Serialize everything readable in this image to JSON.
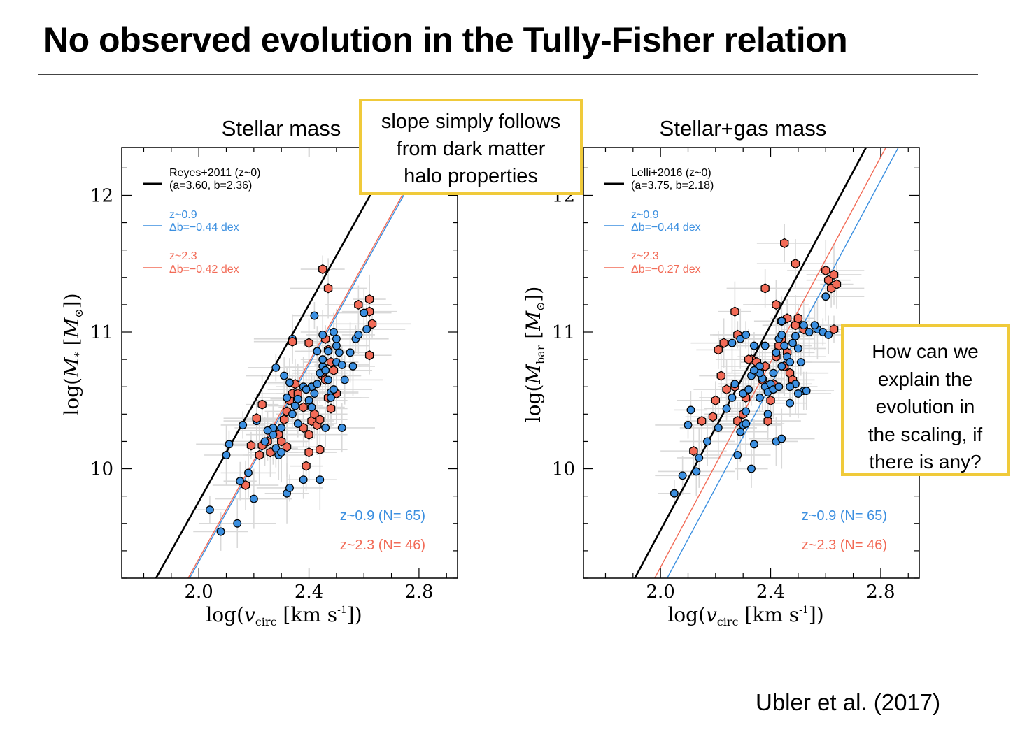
{
  "slide": {
    "title": "No observed evolution in the Tully-Fisher relation",
    "citation": "Ubler et al. (2017)"
  },
  "callouts": {
    "top": [
      "slope simply follows",
      "from dark matter",
      "halo properties"
    ],
    "right": [
      "How can we",
      "explain the",
      "evolution in",
      "the scaling, if",
      "there is any?"
    ]
  },
  "colors": {
    "z09": "#3b8fe0",
    "z23": "#f26b57",
    "local": "#000000",
    "callout_border": "#f0ca3a",
    "errorbar": "#d9d9d9"
  },
  "chart_data": [
    {
      "type": "scatter",
      "title": "Stellar mass",
      "xlabel_parts": [
        "log(",
        "v",
        "circ",
        " [km s",
        "-1",
        "])"
      ],
      "ylabel_parts": [
        "log(",
        "M",
        "*",
        " [",
        "M",
        "⊙",
        "])"
      ],
      "xlim": [
        1.72,
        2.94
      ],
      "ylim": [
        9.2,
        12.35
      ],
      "xticks": [
        2.0,
        2.4,
        2.8
      ],
      "xtick_labels": [
        "2.0",
        "2.4",
        "2.8"
      ],
      "yticks": [
        10,
        11,
        12
      ],
      "ytick_labels": [
        "10",
        "11",
        "12"
      ],
      "grid": false,
      "legend_position": "top-left",
      "legend": {
        "local": {
          "line1": "Reyes+2011 (z~0)",
          "line2": "(a=3.60, b=2.36)"
        },
        "z09": {
          "line1": "z~0.9",
          "line2": "Δb=−0.44 dex"
        },
        "z23": {
          "line1": "z~2.3",
          "line2": "Δb=−0.42 dex"
        }
      },
      "counts": {
        "z09": "z~0.9  (N= 65)",
        "z23": "z~2.3  (N= 46)"
      },
      "lines": [
        {
          "name": "Reyes+2011 (z~0)",
          "slope": 3.6,
          "intercept": 2.36
        },
        {
          "name": "z~0.9",
          "slope": 3.6,
          "intercept": 1.92
        },
        {
          "name": "z~2.3",
          "slope": 3.6,
          "intercept": 1.94
        }
      ],
      "series": [
        {
          "name": "z~0.9",
          "marker": "circle",
          "points": [
            [
              2.04,
              9.7
            ],
            [
              2.08,
              9.54
            ],
            [
              2.14,
              9.6
            ],
            [
              2.1,
              10.1
            ],
            [
              2.11,
              10.18
            ],
            [
              2.15,
              9.91
            ],
            [
              2.18,
              9.97
            ],
            [
              2.2,
              9.78
            ],
            [
              2.16,
              10.32
            ],
            [
              2.21,
              10.35
            ],
            [
              2.24,
              10.2
            ],
            [
              2.27,
              10.25
            ],
            [
              2.27,
              10.3
            ],
            [
              2.28,
              10.15
            ],
            [
              2.29,
              10.1
            ],
            [
              2.3,
              10.12
            ],
            [
              2.28,
              10.74
            ],
            [
              2.31,
              10.68
            ],
            [
              2.33,
              10.63
            ],
            [
              2.32,
              10.52
            ],
            [
              2.34,
              10.4
            ],
            [
              2.35,
              10.46
            ],
            [
              2.34,
              10.95
            ],
            [
              2.32,
              9.82
            ],
            [
              2.33,
              9.86
            ],
            [
              2.38,
              9.92
            ],
            [
              2.36,
              10.51
            ],
            [
              2.4,
              10.5
            ],
            [
              2.41,
              10.6
            ],
            [
              2.42,
              10.55
            ],
            [
              2.43,
              10.62
            ],
            [
              2.44,
              10.7
            ],
            [
              2.45,
              10.75
            ],
            [
              2.45,
              10.8
            ],
            [
              2.46,
              10.72
            ],
            [
              2.47,
              10.65
            ],
            [
              2.48,
              10.56
            ],
            [
              2.49,
              10.58
            ],
            [
              2.5,
              10.78
            ],
            [
              2.5,
              10.9
            ],
            [
              2.51,
              10.85
            ],
            [
              2.52,
              10.76
            ],
            [
              2.53,
              10.65
            ],
            [
              2.55,
              10.85
            ],
            [
              2.57,
              10.95
            ],
            [
              2.58,
              10.98
            ],
            [
              2.6,
              11.14
            ],
            [
              2.61,
              11.02
            ],
            [
              2.42,
              11.12
            ],
            [
              2.49,
              11.0
            ],
            [
              2.45,
              10.98
            ],
            [
              2.38,
              10.6
            ],
            [
              2.36,
              10.33
            ],
            [
              2.46,
              10.3
            ],
            [
              2.52,
              10.3
            ],
            [
              2.44,
              9.92
            ],
            [
              2.47,
              10.86
            ],
            [
              2.39,
              10.58
            ],
            [
              2.43,
              10.86
            ],
            [
              2.5,
              10.95
            ],
            [
              2.3,
              10.3
            ],
            [
              2.25,
              10.28
            ],
            [
              2.48,
              10.52
            ],
            [
              2.56,
              10.75
            ],
            [
              2.41,
              10.45
            ]
          ]
        },
        {
          "name": "z~2.3",
          "marker": "hexagon",
          "points": [
            [
              2.17,
              9.88
            ],
            [
              2.22,
              10.1
            ],
            [
              2.23,
              10.17
            ],
            [
              2.25,
              10.2
            ],
            [
              2.26,
              10.12
            ],
            [
              2.27,
              10.28
            ],
            [
              2.29,
              10.25
            ],
            [
              2.3,
              10.2
            ],
            [
              2.31,
              10.36
            ],
            [
              2.32,
              10.42
            ],
            [
              2.33,
              10.5
            ],
            [
              2.34,
              10.55
            ],
            [
              2.35,
              10.62
            ],
            [
              2.36,
              10.55
            ],
            [
              2.38,
              10.45
            ],
            [
              2.38,
              10.3
            ],
            [
              2.39,
              10.02
            ],
            [
              2.4,
              10.12
            ],
            [
              2.4,
              10.25
            ],
            [
              2.41,
              10.35
            ],
            [
              2.42,
              10.4
            ],
            [
              2.43,
              10.32
            ],
            [
              2.44,
              10.36
            ],
            [
              2.45,
              10.68
            ],
            [
              2.46,
              10.65
            ],
            [
              2.47,
              10.52
            ],
            [
              2.47,
              10.87
            ],
            [
              2.48,
              10.78
            ],
            [
              2.49,
              10.72
            ],
            [
              2.5,
              10.55
            ],
            [
              2.46,
              10.95
            ],
            [
              2.48,
              10.44
            ],
            [
              2.44,
              10.14
            ],
            [
              2.47,
              11.32
            ],
            [
              2.45,
              11.46
            ],
            [
              2.58,
              11.2
            ],
            [
              2.62,
              11.24
            ],
            [
              2.62,
              11.15
            ],
            [
              2.63,
              11.06
            ],
            [
              2.62,
              10.83
            ],
            [
              2.21,
              10.37
            ],
            [
              2.23,
              10.47
            ],
            [
              2.19,
              10.17
            ],
            [
              2.34,
              10.93
            ],
            [
              2.4,
              10.92
            ],
            [
              2.32,
              10.16
            ]
          ]
        }
      ]
    },
    {
      "type": "scatter",
      "title": "Stellar+gas mass",
      "xlabel_parts": [
        "log(",
        "v",
        "circ",
        " [km s",
        "-1",
        "])"
      ],
      "ylabel_parts": [
        "log(",
        "M",
        "bar",
        " [",
        "M",
        "⊙",
        "])"
      ],
      "xlim": [
        1.72,
        2.94
      ],
      "ylim": [
        9.2,
        12.35
      ],
      "xticks": [
        2.0,
        2.4,
        2.8
      ],
      "xtick_labels": [
        "2.0",
        "2.4",
        "2.8"
      ],
      "yticks": [
        10,
        11,
        12
      ],
      "ytick_labels": [
        "10",
        "11",
        "12"
      ],
      "grid": false,
      "legend_position": "top-left",
      "legend": {
        "local": {
          "line1": "Lelli+2016 (z~0)",
          "line2": "(a=3.75, b=2.18)"
        },
        "z09": {
          "line1": "z~0.9",
          "line2": "Δb=−0.44 dex"
        },
        "z23": {
          "line1": "z~2.3",
          "line2": "Δb=−0.27 dex"
        }
      },
      "counts": {
        "z09": "z~0.9  (N= 65)",
        "z23": "z~2.3  (N= 46)"
      },
      "lines": [
        {
          "name": "Lelli+2016 (z~0)",
          "slope": 3.75,
          "intercept": 2.18
        },
        {
          "name": "z~0.9",
          "slope": 3.75,
          "intercept": 1.74
        },
        {
          "name": "z~2.3",
          "slope": 3.75,
          "intercept": 1.91
        }
      ],
      "series": [
        {
          "name": "z~0.9",
          "marker": "circle",
          "points": [
            [
              2.05,
              9.82
            ],
            [
              2.08,
              9.95
            ],
            [
              2.13,
              9.98
            ],
            [
              2.14,
              10.08
            ],
            [
              2.1,
              10.32
            ],
            [
              2.11,
              10.43
            ],
            [
              2.17,
              10.2
            ],
            [
              2.21,
              10.3
            ],
            [
              2.24,
              10.44
            ],
            [
              2.26,
              10.52
            ],
            [
              2.27,
              10.62
            ],
            [
              2.29,
              10.27
            ],
            [
              2.3,
              10.32
            ],
            [
              2.3,
              10.55
            ],
            [
              2.32,
              10.58
            ],
            [
              2.33,
              10.68
            ],
            [
              2.34,
              10.9
            ],
            [
              2.36,
              10.75
            ],
            [
              2.37,
              10.66
            ],
            [
              2.38,
              10.6
            ],
            [
              2.39,
              10.56
            ],
            [
              2.4,
              10.62
            ],
            [
              2.41,
              10.7
            ],
            [
              2.42,
              10.85
            ],
            [
              2.43,
              10.95
            ],
            [
              2.44,
              10.98
            ],
            [
              2.45,
              10.9
            ],
            [
              2.46,
              10.82
            ],
            [
              2.47,
              10.78
            ],
            [
              2.48,
              10.92
            ],
            [
              2.49,
              10.97
            ],
            [
              2.5,
              10.88
            ],
            [
              2.51,
              10.78
            ],
            [
              2.52,
              10.57
            ],
            [
              2.5,
              10.55
            ],
            [
              2.49,
              10.62
            ],
            [
              2.47,
              10.6
            ],
            [
              2.52,
              11.05
            ],
            [
              2.54,
              11.0
            ],
            [
              2.57,
              11.02
            ],
            [
              2.59,
              11.0
            ],
            [
              2.61,
              10.98
            ],
            [
              2.6,
              11.26
            ],
            [
              2.29,
              10.95
            ],
            [
              2.31,
              10.98
            ],
            [
              2.33,
              10.0
            ],
            [
              2.34,
              10.18
            ],
            [
              2.31,
              10.33
            ],
            [
              2.31,
              10.42
            ],
            [
              2.36,
              10.7
            ],
            [
              2.44,
              11.08
            ],
            [
              2.41,
              10.58
            ],
            [
              2.43,
              10.6
            ],
            [
              2.44,
              10.75
            ],
            [
              2.28,
              10.1
            ],
            [
              2.26,
              10.92
            ],
            [
              2.38,
              10.9
            ],
            [
              2.39,
              10.4
            ],
            [
              2.42,
              10.2
            ],
            [
              2.44,
              10.22
            ],
            [
              2.47,
              10.48
            ],
            [
              2.53,
              10.57
            ],
            [
              2.56,
              11.05
            ],
            [
              2.34,
              10.72
            ],
            [
              2.36,
              10.52
            ]
          ]
        },
        {
          "name": "z~2.3",
          "marker": "hexagon",
          "points": [
            [
              2.12,
              10.13
            ],
            [
              2.15,
              10.35
            ],
            [
              2.19,
              10.38
            ],
            [
              2.2,
              10.5
            ],
            [
              2.22,
              10.68
            ],
            [
              2.24,
              10.58
            ],
            [
              2.27,
              10.6
            ],
            [
              2.28,
              10.35
            ],
            [
              2.3,
              10.4
            ],
            [
              2.31,
              10.52
            ],
            [
              2.33,
              10.8
            ],
            [
              2.35,
              10.78
            ],
            [
              2.36,
              10.72
            ],
            [
              2.37,
              10.65
            ],
            [
              2.38,
              10.75
            ],
            [
              2.39,
              10.35
            ],
            [
              2.4,
              10.5
            ],
            [
              2.41,
              10.62
            ],
            [
              2.42,
              10.82
            ],
            [
              2.43,
              10.9
            ],
            [
              2.44,
              10.95
            ],
            [
              2.45,
              10.75
            ],
            [
              2.46,
              10.85
            ],
            [
              2.47,
              10.7
            ],
            [
              2.48,
              10.65
            ],
            [
              2.49,
              11.05
            ],
            [
              2.5,
              11.1
            ],
            [
              2.45,
              11.65
            ],
            [
              2.49,
              11.5
            ],
            [
              2.52,
              11.02
            ],
            [
              2.42,
              11.2
            ],
            [
              2.46,
              11.1
            ],
            [
              2.44,
              11.08
            ],
            [
              2.6,
              11.45
            ],
            [
              2.61,
              11.38
            ],
            [
              2.62,
              11.32
            ],
            [
              2.64,
              11.35
            ],
            [
              2.63,
              11.42
            ],
            [
              2.63,
              11.02
            ],
            [
              2.21,
              10.87
            ],
            [
              2.23,
              10.92
            ],
            [
              2.27,
              11.15
            ],
            [
              2.28,
              10.98
            ],
            [
              2.38,
              11.32
            ],
            [
              2.42,
              11.2
            ],
            [
              2.32,
              10.8
            ]
          ]
        }
      ]
    }
  ]
}
